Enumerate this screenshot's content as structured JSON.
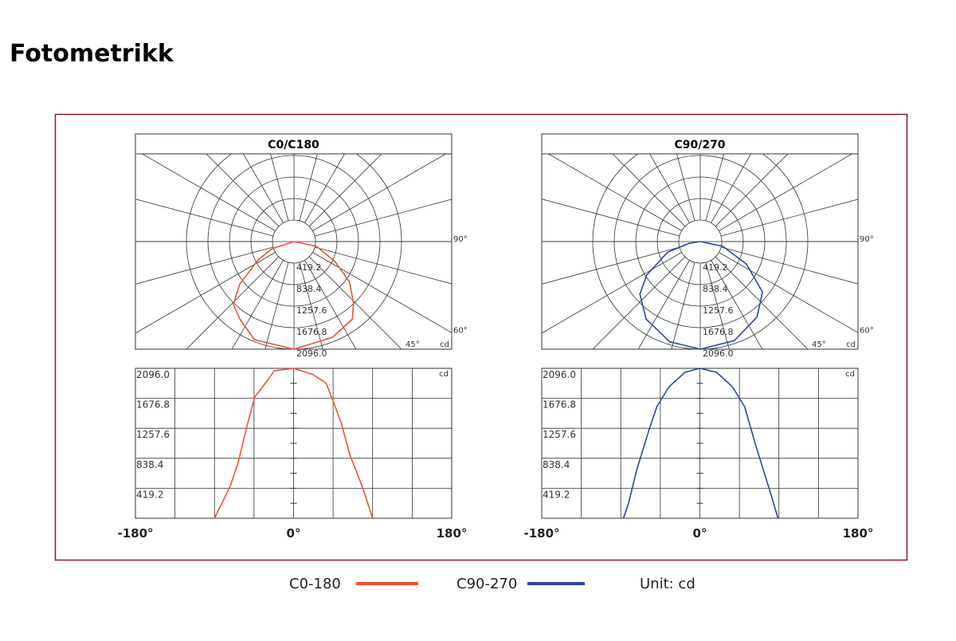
{
  "header": {
    "title": "Fotometrikk"
  },
  "unit_note": "Unit: cd",
  "chart_data": [
    {
      "type": "photometric",
      "title": "C0/C180",
      "unit": "cd",
      "ylim": [
        0,
        2096
      ],
      "yticks": [
        419.2,
        838.4,
        1257.6,
        1676.8,
        {
          "value": 2096,
          "label": "2096.0"
        }
      ],
      "xlim": [
        -180,
        180
      ],
      "xticks": [
        {
          "value": -180,
          "label": "-180°"
        },
        {
          "value": 0,
          "label": "0°"
        },
        {
          "value": 180,
          "label": "180°"
        }
      ],
      "angle_labels": [
        {
          "value": 90,
          "label": "90°"
        },
        {
          "value": 60,
          "label": "60°"
        },
        {
          "value": 45,
          "label": "45°"
        }
      ],
      "series": [
        {
          "name": "C0-180",
          "color": "#e8553a",
          "x": [
            -90,
            -72,
            -63,
            -52,
            -44,
            -35,
            -22,
            0,
            22,
            37,
            44,
            54,
            64,
            78,
            90
          ],
          "values": [
            0,
            450,
            780,
            1340,
            1700,
            1840,
            2060,
            2096,
            2010,
            1890,
            1670,
            1340,
            890,
            450,
            0
          ]
        }
      ]
    },
    {
      "type": "photometric",
      "title": "C90/270",
      "unit": "cd",
      "ylim": [
        0,
        2096
      ],
      "yticks": [
        419.2,
        838.4,
        1257.6,
        1676.8,
        {
          "value": 2096,
          "label": "2096.0"
        }
      ],
      "xlim": [
        -180,
        180
      ],
      "xticks": [
        {
          "value": -180,
          "label": "-180°"
        },
        {
          "value": 0,
          "label": "0°"
        },
        {
          "value": 180,
          "label": "180°"
        }
      ],
      "angle_labels": [
        {
          "value": 90,
          "label": "90°"
        },
        {
          "value": 60,
          "label": "60°"
        },
        {
          "value": 45,
          "label": "45°"
        }
      ],
      "series": [
        {
          "name": "C90-270",
          "color": "#2a4aa0",
          "x": [
            -87,
            -81,
            -72,
            -58,
            -49,
            -35,
            -17,
            0,
            19,
            37,
            51,
            64,
            78,
            89
          ],
          "values": [
            0,
            220,
            670,
            1230,
            1560,
            1840,
            2040,
            2096,
            2040,
            1840,
            1560,
            1000,
            450,
            0
          ]
        }
      ]
    }
  ]
}
